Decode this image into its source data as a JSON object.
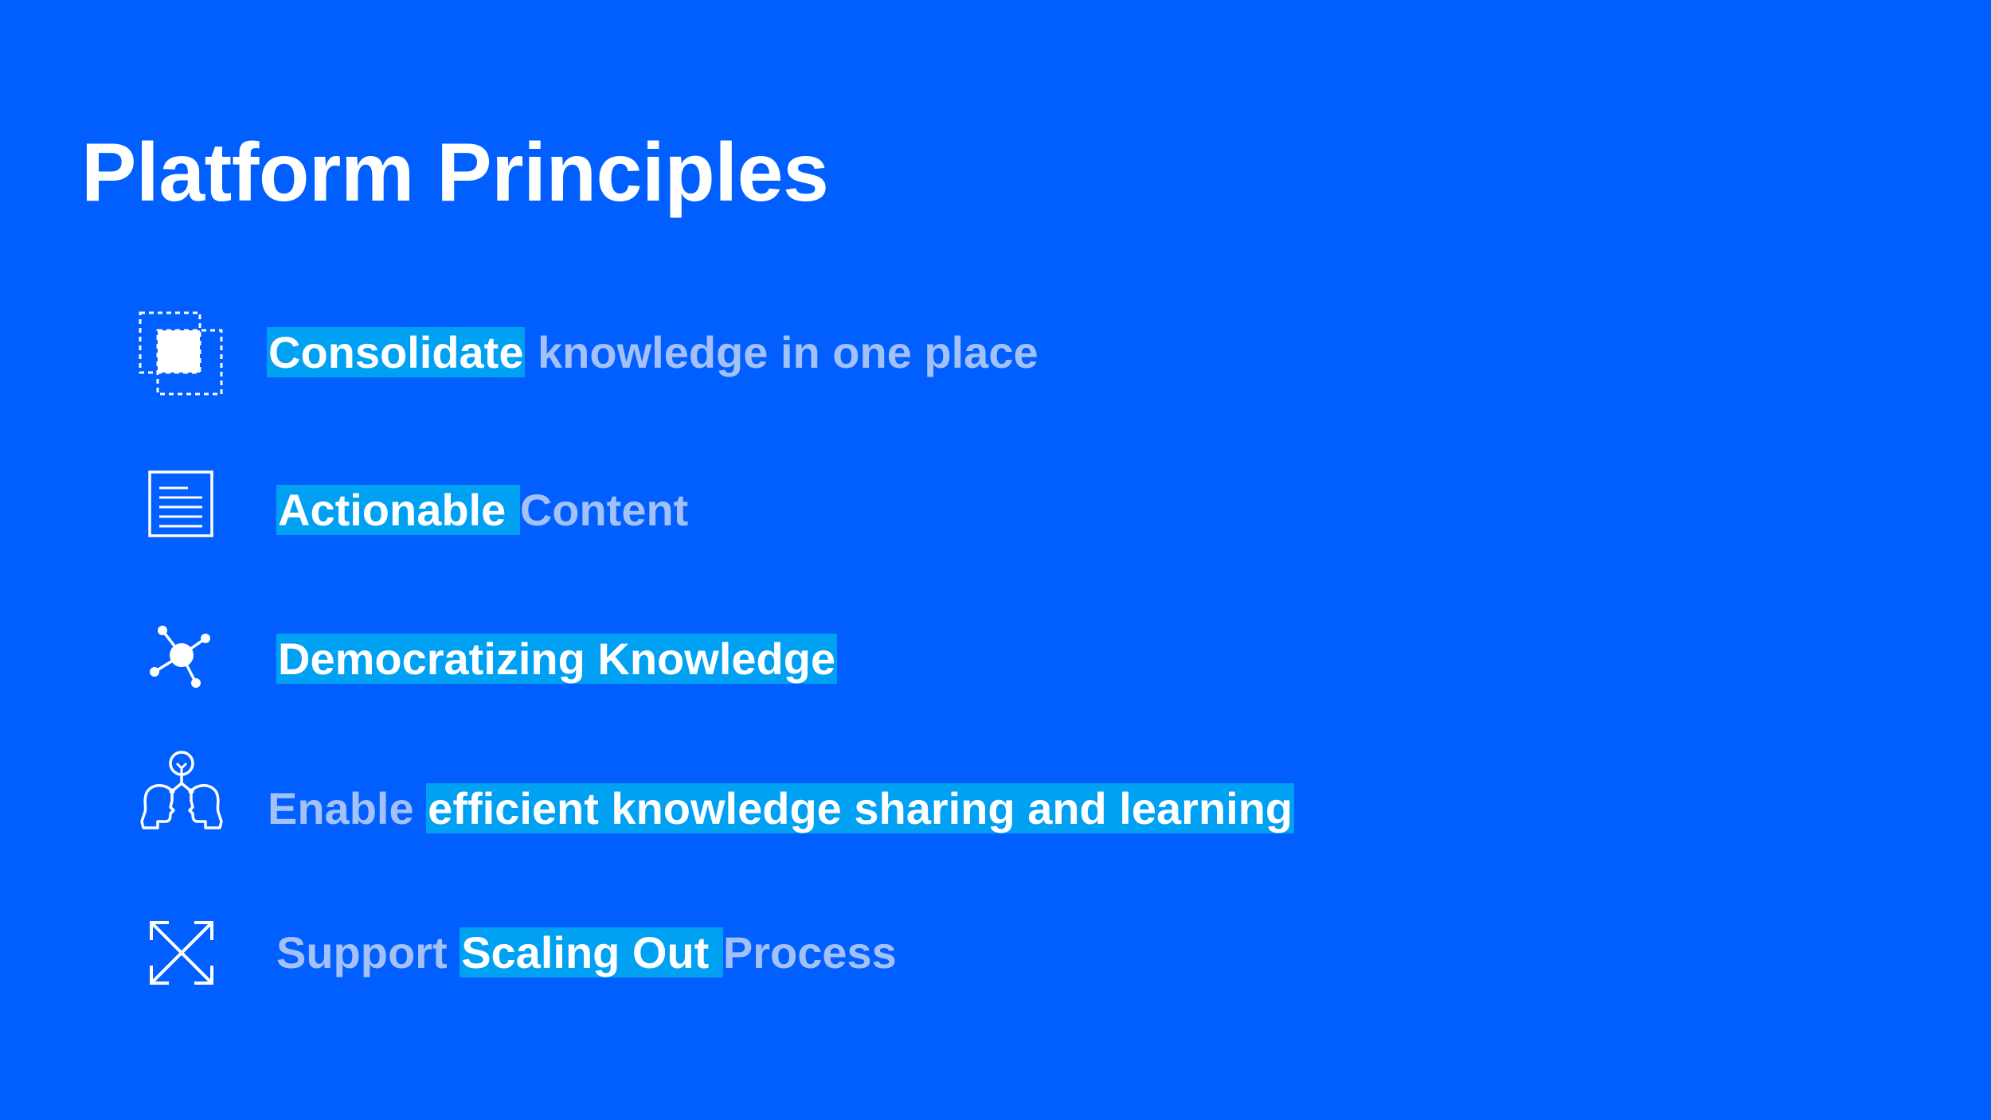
{
  "slide": {
    "title": "Platform Principles",
    "principles": [
      {
        "icon": "consolidate-icon",
        "highlight": "Consolidate",
        "rest": " knowledge in one place"
      },
      {
        "icon": "document-icon",
        "highlight": "Actionable ",
        "rest": "Content"
      },
      {
        "icon": "network-icon",
        "highlight": "Democratizing Knowledge"
      },
      {
        "icon": "knowledge-sharing-icon",
        "before": "Enable ",
        "highlight": "efficient knowledge sharing and learning"
      },
      {
        "icon": "expand-arrows-icon",
        "before": "Support ",
        "highlight": "Scaling Out ",
        "rest": "Process"
      }
    ]
  },
  "colors": {
    "background": "#005ffe",
    "highlight": "#00a1f3",
    "dim_text": "#a4c1f7",
    "text": "#ffffff"
  }
}
